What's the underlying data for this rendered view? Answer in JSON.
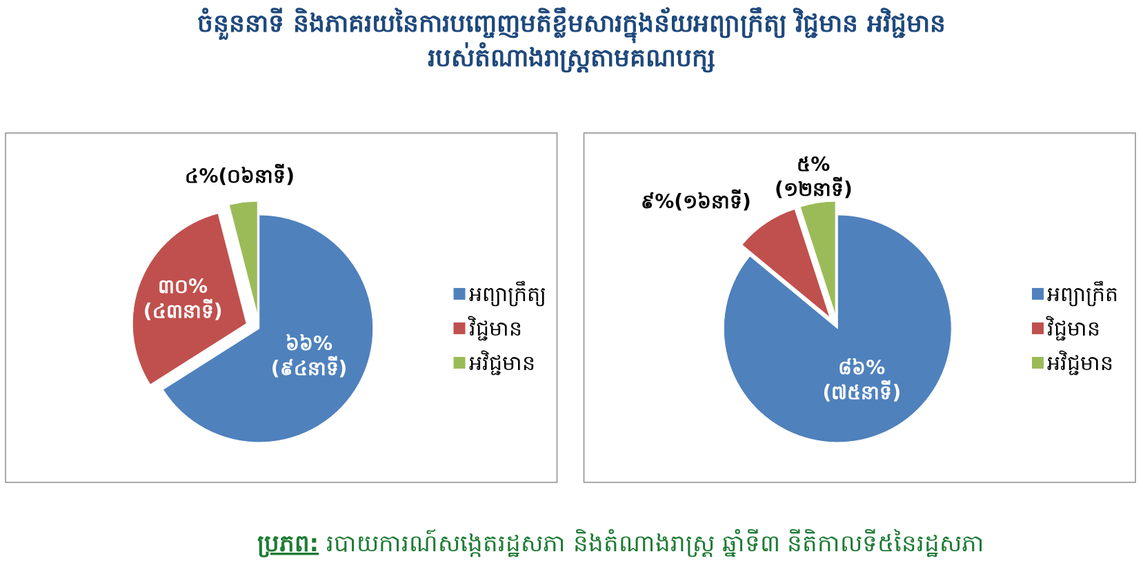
{
  "chart_data": [
    {
      "type": "pie",
      "title": "ចំនួននាទី និងភាគរយនៃការបញ្ចេញមតិខ្លឹមសារក្នុងន័យអព្យាក្រឹត្យ វិជ្ជមាន អវិជ្ជមាន\nរបស់តំណាងរាស្ត្រតាមគណបក្ស",
      "categories": [
        "អព្យាក្រឹត្យ",
        "វិជ្ជមាន",
        "អវិជ្ជមាន"
      ],
      "values": [
        66,
        30,
        4
      ],
      "colors": [
        "#4f81bd",
        "#c0504d",
        "#9bbb59"
      ],
      "value_labels": [
        "៦៦%\n(៩៤នាទី)",
        "៣០%\n(៤៣នាទី)",
        "៤%(០៦នាទី)"
      ],
      "legend": "right"
    },
    {
      "type": "pie",
      "categories": [
        "អព្យាក្រឹត",
        "វិជ្ជមាន",
        "អវិជ្ជមាន"
      ],
      "values": [
        86,
        9,
        5
      ],
      "colors": [
        "#4f81bd",
        "#c0504d",
        "#9bbb59"
      ],
      "value_labels": [
        "៨៦%\n(៧៥នាទី)",
        "៩%(១៦នាទី)",
        "៥%\n(១២នាទី)"
      ],
      "legend": "right",
      "annotations": [
        "**ប្រភព:** របាយការណ៍សង្កេតរដ្ឋសភា និងតំណាងរាស្ត្រ ឆ្នាំទី៣ នីតិកាលទី៥នៃរដ្ឋសភា"
      ]
    }
  ]
}
